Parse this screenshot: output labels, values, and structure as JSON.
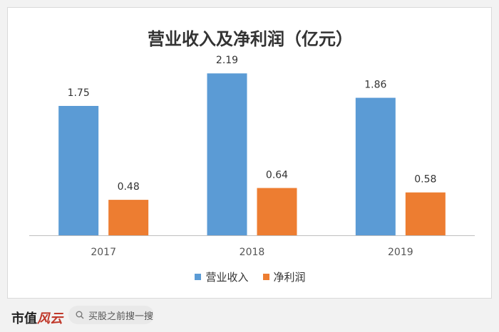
{
  "footer": {
    "logo_text": "市值",
    "logo_accent": "风云",
    "search_text": "买股之前搜一搜"
  },
  "colors": {
    "revenue": "#5b9bd5",
    "profit": "#ed7d31"
  },
  "chart_data": {
    "type": "bar",
    "title": "营业收入及净利润（亿元）",
    "categories": [
      "2017",
      "2018",
      "2019"
    ],
    "series": [
      {
        "name": "营业收入",
        "values": [
          1.75,
          2.19,
          1.86
        ]
      },
      {
        "name": "净利润",
        "values": [
          0.48,
          0.64,
          0.58
        ]
      }
    ],
    "data_labels": [
      [
        "1.75",
        "2.19",
        "1.86"
      ],
      [
        "0.48",
        "0.64",
        "0.58"
      ]
    ],
    "ylim": [
      0,
      2.5
    ],
    "grid": false,
    "legend": "bottom"
  }
}
